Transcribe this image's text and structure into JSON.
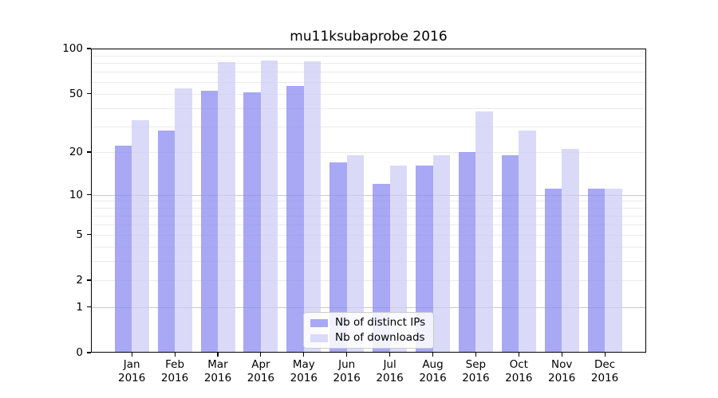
{
  "title": "mu11ksubaprobe 2016",
  "chart_data": {
    "type": "bar",
    "title": "mu11ksubaprobe 2016",
    "categories": [
      "Jan 2016",
      "Feb 2016",
      "Mar 2016",
      "Apr 2016",
      "May 2016",
      "Jun 2016",
      "Jul 2016",
      "Aug 2016",
      "Sep 2016",
      "Oct 2016",
      "Nov 2016",
      "Dec 2016"
    ],
    "series": [
      {
        "name": "Nb of distinct IPs",
        "color": "#8b8bf2",
        "alpha": 0.75,
        "values": [
          22,
          28,
          52,
          51,
          56,
          17,
          12,
          16,
          20,
          19,
          11,
          11
        ]
      },
      {
        "name": "Nb of downloads",
        "color": "#cdcdf5",
        "alpha": 0.75,
        "values": [
          33,
          54,
          81,
          83,
          82,
          19,
          16,
          19,
          38,
          28,
          21,
          11
        ]
      }
    ],
    "yscale": "log(value+1)",
    "ylim": [
      0,
      100
    ],
    "xlabel": "",
    "ylabel": "",
    "grid": true,
    "legend_position": "lower center",
    "yticks": [
      {
        "value": 0,
        "label": "0"
      },
      {
        "value": 1,
        "label": "1"
      },
      {
        "value": 2,
        "label": "2"
      },
      {
        "value": 5,
        "label": "5"
      },
      {
        "value": 10,
        "label": "10"
      },
      {
        "value": 20,
        "label": "20"
      },
      {
        "value": 50,
        "label": "50"
      },
      {
        "value": 100,
        "label": "100"
      }
    ],
    "gridlines": {
      "minor_values": [
        2,
        3,
        4,
        5,
        6,
        7,
        8,
        9,
        20,
        30,
        40,
        50,
        60,
        70,
        80,
        90
      ],
      "major_values": [
        1,
        10,
        100
      ],
      "minor_color": "#ebebeb",
      "major_color": "#c8c8c8"
    }
  },
  "colors": {
    "background": "#ffffff",
    "spine": "#000000",
    "text": "#000000",
    "bar_distinct_ips": "#8b8bf2",
    "bar_downloads": "#cdcdf5"
  }
}
